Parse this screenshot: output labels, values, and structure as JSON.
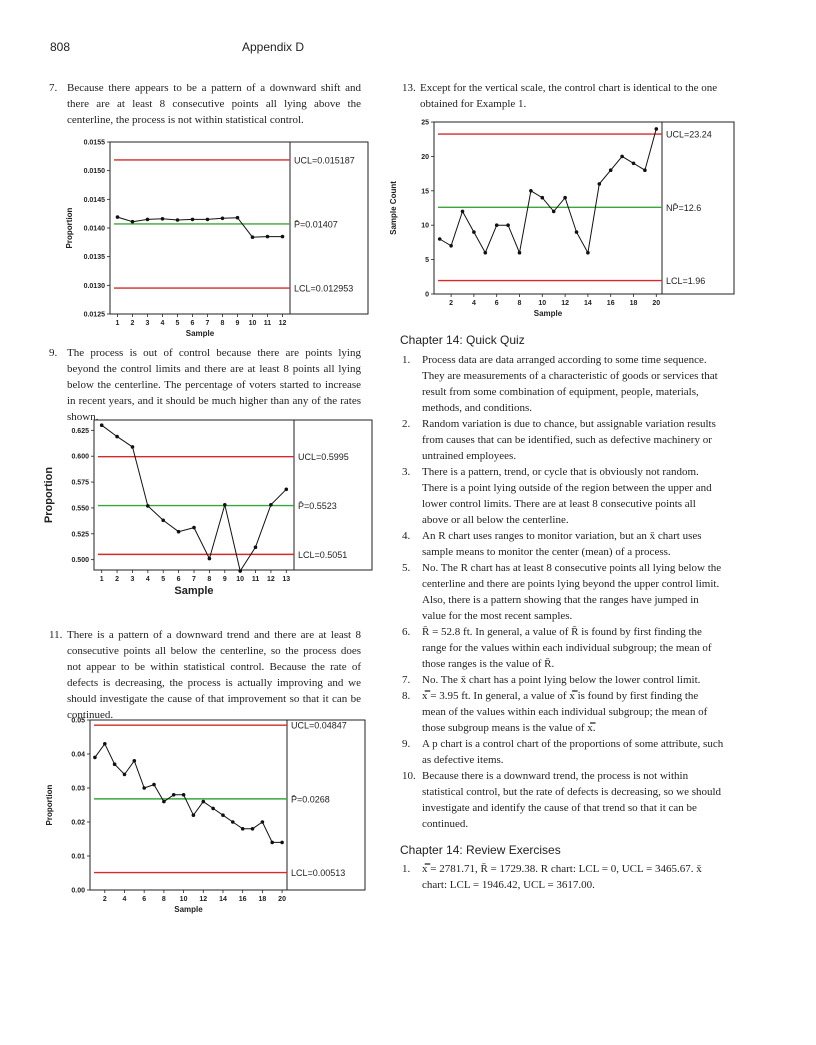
{
  "header": {
    "page_number": "808",
    "title": "Appendix D"
  },
  "answers_left": [
    {
      "number": "7.",
      "text": "Because there appears to be a pattern of a downward shift and there are at least 8 consecutive points all lying above the centerline, the process is not within statistical control."
    },
    {
      "number": "9.",
      "text": "The process is out of control because there are points lying beyond the control limits and there are at least 8 points all lying below the centerline. The percentage of voters started to increase in recent years, and it should be much higher than any of the rates shown."
    },
    {
      "number": "11.",
      "text": "There is a pattern of a downward trend and there are at least 8 consecutive points all below the centerline, so the process does not appear to be within statistical control. Because the rate of defects is decreasing, the process is actually improving and we should investigate the cause of that improvement so that it can be continued."
    }
  ],
  "answers_right": [
    {
      "number": "13.",
      "text": "Except for the vertical scale, the control chart is identical to the one obtained for Example 1."
    }
  ],
  "quick_quiz": {
    "heading": "Chapter 14: Quick Quiz",
    "items": [
      {
        "number": "1.",
        "text": "Process data are data arranged according to some time sequence. They are measurements of a characteristic of goods or services that result from some combination of equipment, people, materials, methods, and conditions."
      },
      {
        "number": "2.",
        "text": "Random variation is due to chance, but assignable variation results from causes that can be identified, such as defective machinery or untrained employees."
      },
      {
        "number": "3.",
        "text": "There is a pattern, trend, or cycle that is obviously not random. There is a point lying outside of the region between the upper and lower control limits. There are at least 8 consecutive points all above or all below the centerline."
      },
      {
        "number": "4.",
        "text": "An R chart uses ranges to monitor variation, but an x̄ chart uses sample means to monitor the center (mean) of a process."
      },
      {
        "number": "5.",
        "text": "No. The R chart has at least 8 consecutive points all lying below the centerline and there are points lying beyond the upper control limit. Also, there is a pattern showing that the ranges have jumped in value for the most recent samples."
      },
      {
        "number": "6.",
        "text": "R̄ = 52.8 ft. In general, a value of R̄ is found by first finding the range for the values within each individual subgroup; the mean of those ranges is the value of R̄."
      },
      {
        "number": "7.",
        "text": "No. The x̄ chart has a point lying below the lower control limit."
      },
      {
        "number": "8.",
        "text": "x̿ = 3.95 ft. In general, a value of x̿ is found by first finding the mean of the values within each individual subgroup; the mean of those subgroup means is the value of x̿."
      },
      {
        "number": "9.",
        "text": "A p chart is a control chart of the proportions of some attribute, such as defective items."
      },
      {
        "number": "10.",
        "text": "Because there is a downward trend, the process is not within statistical control, but the rate of defects is decreasing, so we should investigate and identify the cause of that trend so that it can be continued."
      }
    ]
  },
  "review": {
    "heading": "Chapter 14: Review Exercises",
    "items": [
      {
        "number": "1.",
        "text": "x̿ = 2781.71, R̄ = 1729.38. R chart: LCL = 0, UCL = 3465.67. x̄ chart: LCL = 1946.42, UCL = 3617.00."
      }
    ]
  },
  "chart_data": [
    {
      "type": "line",
      "xlabel": "Sample",
      "ylabel": "Proportion",
      "x": [
        1,
        2,
        3,
        4,
        5,
        6,
        7,
        8,
        9,
        10,
        11,
        12
      ],
      "values": [
        0.01419,
        0.01411,
        0.01415,
        0.01416,
        0.01414,
        0.01415,
        0.01415,
        0.01417,
        0.01418,
        0.01384,
        0.01385,
        0.01385
      ],
      "ylim": [
        0.0125,
        0.0155
      ],
      "yticks": [
        "0.0125",
        "0.0130",
        "0.0135",
        "0.0140",
        "0.0145",
        "0.0150",
        "0.0155"
      ],
      "xticks": [
        "1",
        "2",
        "3",
        "4",
        "5",
        "6",
        "7",
        "8",
        "9",
        "10",
        "11",
        "12"
      ],
      "lines": [
        {
          "label": "UCL=0.015187",
          "value": 0.015187,
          "color": "#d42a2a"
        },
        {
          "label": "P̄=0.01407",
          "value": 0.01407,
          "color": "#3aa63a"
        },
        {
          "label": "LCL=0.012953",
          "value": 0.012953,
          "color": "#d42a2a"
        }
      ]
    },
    {
      "type": "line",
      "xlabel": "Sample",
      "ylabel": "Proportion",
      "x": [
        1,
        2,
        3,
        4,
        5,
        6,
        7,
        8,
        9,
        10,
        11,
        12,
        13
      ],
      "values": [
        0.63,
        0.619,
        0.609,
        0.552,
        0.538,
        0.527,
        0.531,
        0.501,
        0.553,
        0.489,
        0.512,
        0.553,
        0.568
      ],
      "ylim": [
        0.49,
        0.635
      ],
      "yticks": [
        "0.500",
        "0.525",
        "0.550",
        "0.575",
        "0.600",
        "0.625"
      ],
      "xticks": [
        "1",
        "2",
        "3",
        "4",
        "5",
        "6",
        "7",
        "8",
        "9",
        "10",
        "11",
        "12",
        "13"
      ],
      "lines": [
        {
          "label": "UCL=0.5995",
          "value": 0.5995,
          "color": "#d42a2a"
        },
        {
          "label": "P̄=0.5523",
          "value": 0.5523,
          "color": "#3aa63a"
        },
        {
          "label": "LCL=0.5051",
          "value": 0.5051,
          "color": "#d42a2a"
        }
      ]
    },
    {
      "type": "line",
      "xlabel": "Sample",
      "ylabel": "Proportion",
      "x": [
        1,
        2,
        3,
        4,
        5,
        6,
        7,
        8,
        9,
        10,
        11,
        12,
        13,
        14,
        15,
        16,
        17,
        18,
        19,
        20
      ],
      "values": [
        0.039,
        0.043,
        0.037,
        0.034,
        0.038,
        0.03,
        0.031,
        0.026,
        0.028,
        0.028,
        0.022,
        0.026,
        0.024,
        0.022,
        0.02,
        0.018,
        0.018,
        0.02,
        0.014,
        0.014
      ],
      "ylim": [
        0.0,
        0.05
      ],
      "yticks": [
        "0.00",
        "0.01",
        "0.02",
        "0.03",
        "0.04",
        "0.05"
      ],
      "xticks": [
        "2",
        "4",
        "6",
        "8",
        "10",
        "12",
        "14",
        "16",
        "18",
        "20"
      ],
      "lines": [
        {
          "label": "UCL=0.04847",
          "value": 0.04847,
          "color": "#d42a2a"
        },
        {
          "label": "P̄=0.0268",
          "value": 0.0268,
          "color": "#3aa63a"
        },
        {
          "label": "LCL=0.00513",
          "value": 0.00513,
          "color": "#d42a2a"
        }
      ]
    },
    {
      "type": "line",
      "xlabel": "Sample",
      "ylabel": "Sample Count",
      "x": [
        1,
        2,
        3,
        4,
        5,
        6,
        7,
        8,
        9,
        10,
        11,
        12,
        13,
        14,
        15,
        16,
        17,
        18,
        19,
        20
      ],
      "values": [
        8,
        7,
        12,
        9,
        6,
        10,
        10,
        6,
        15,
        14,
        12,
        14,
        9,
        6,
        16,
        18,
        20,
        19,
        18,
        24
      ],
      "ylim": [
        0,
        25
      ],
      "yticks": [
        "0",
        "5",
        "10",
        "15",
        "20",
        "25"
      ],
      "xticks": [
        "2",
        "4",
        "6",
        "8",
        "10",
        "12",
        "14",
        "16",
        "18",
        "20"
      ],
      "lines": [
        {
          "label": "UCL=23.24",
          "value": 23.24,
          "color": "#d42a2a"
        },
        {
          "label": "NP̄=12.6",
          "value": 12.6,
          "color": "#3aa63a"
        },
        {
          "label": "LCL=1.96",
          "value": 1.96,
          "color": "#d42a2a"
        }
      ]
    }
  ]
}
